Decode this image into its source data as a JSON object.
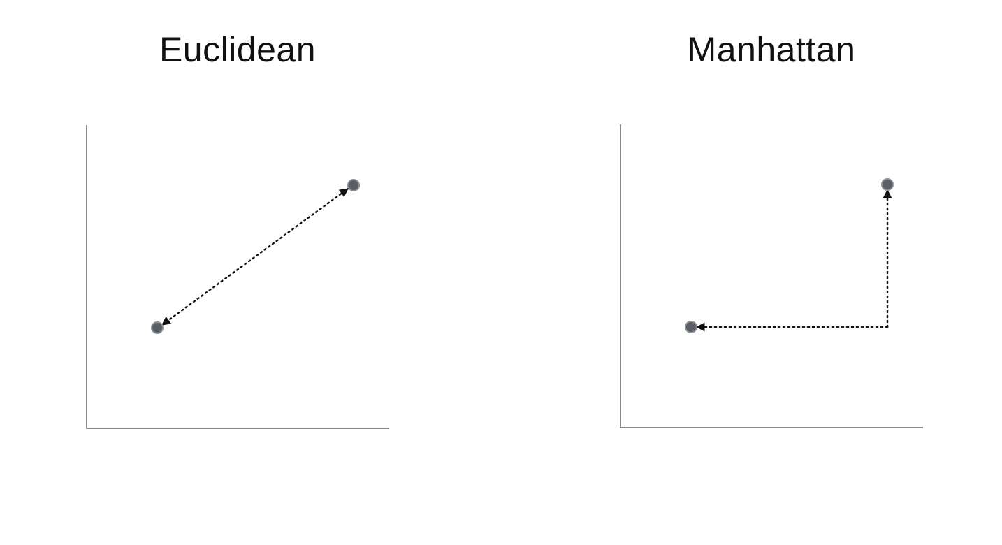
{
  "panels": [
    {
      "title": "Euclidean"
    },
    {
      "title": "Manhattan"
    }
  ],
  "colors": {
    "axis": "#8a8a8a",
    "point_fill": "#5a5f66",
    "point_stroke": "#8a8f96",
    "path": "#111111",
    "text": "#111111"
  }
}
